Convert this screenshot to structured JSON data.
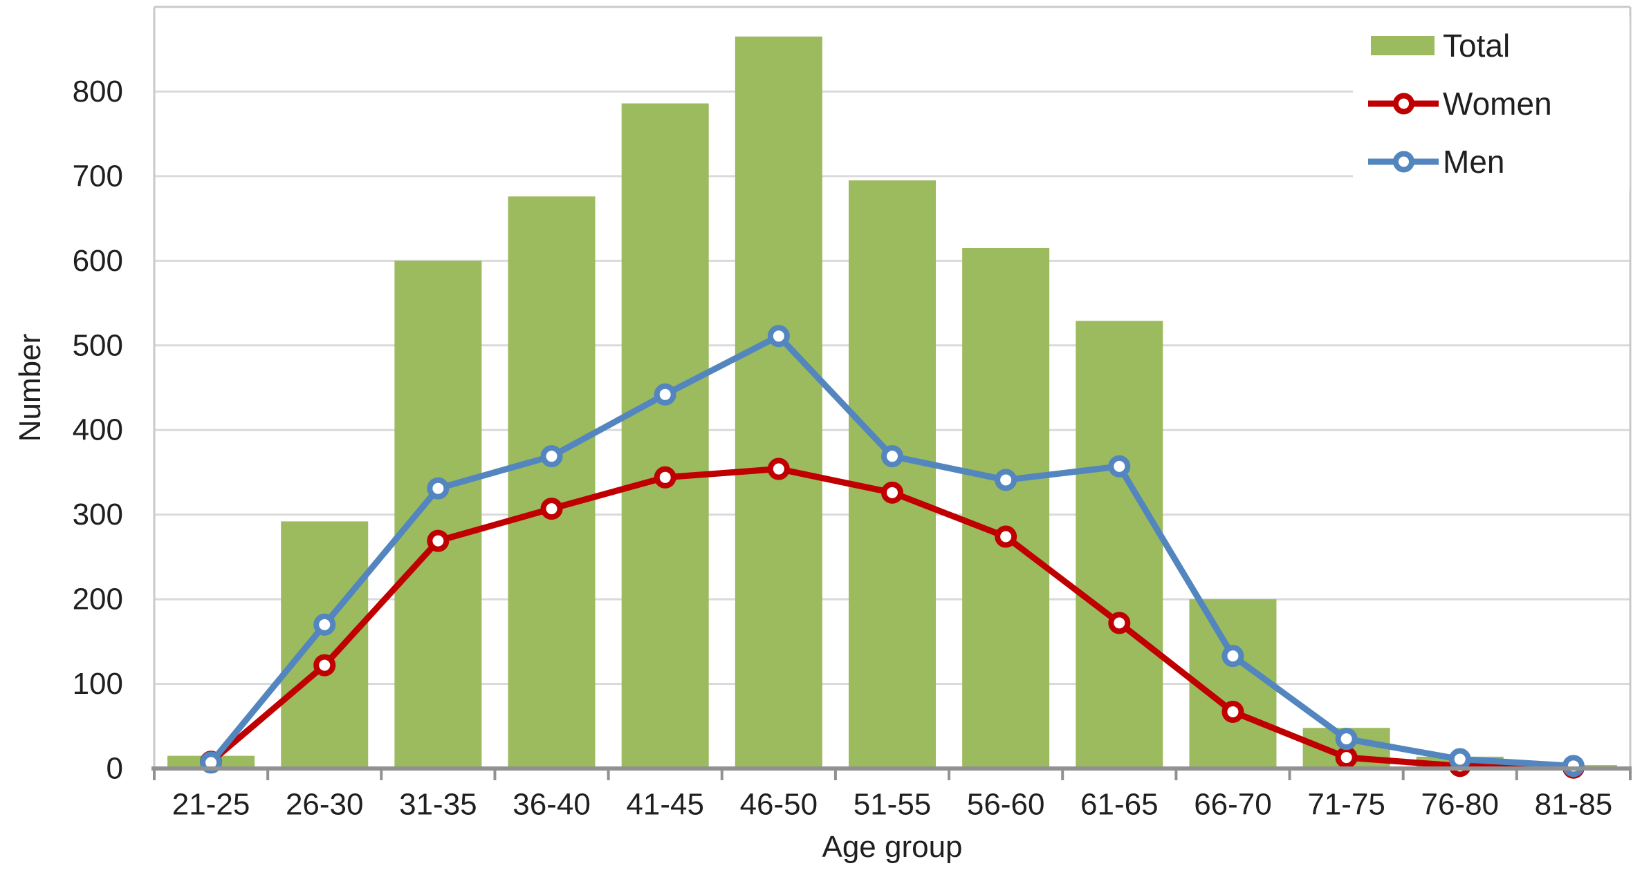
{
  "chart_data": {
    "type": "bar+line combo",
    "title": "",
    "xlabel": "Age group",
    "ylabel": "Number",
    "categories": [
      "21-25",
      "26-30",
      "31-35",
      "36-40",
      "41-45",
      "46-50",
      "51-55",
      "56-60",
      "61-65",
      "66-70",
      "71-75",
      "76-80",
      "81-85"
    ],
    "series": [
      {
        "name": "Total",
        "type": "bar",
        "color": "#9CBA5E",
        "values": [
          15,
          292,
          600,
          676,
          786,
          865,
          695,
          615,
          529,
          200,
          48,
          14,
          4
        ]
      },
      {
        "name": "Women",
        "type": "line",
        "color": "#C00000",
        "marker": "circle",
        "values": [
          8,
          122,
          269,
          307,
          344,
          354,
          326,
          274,
          172,
          67,
          13,
          3,
          1
        ]
      },
      {
        "name": "Men",
        "type": "line",
        "color": "#5385BE",
        "marker": "circle",
        "values": [
          7,
          170,
          331,
          369,
          442,
          511,
          369,
          341,
          357,
          133,
          35,
          11,
          3
        ]
      }
    ],
    "ylim": [
      0,
      900
    ],
    "yticks": [
      0,
      100,
      200,
      300,
      400,
      500,
      600,
      700,
      800
    ],
    "grid": true,
    "legend_position": "top-right",
    "colors": {
      "gridline": "#DADADA",
      "plot_border": "#C9C9C9",
      "axis_line": "#919191",
      "tick_text": "#1f1f1f",
      "background": "#FFFFFF"
    }
  }
}
